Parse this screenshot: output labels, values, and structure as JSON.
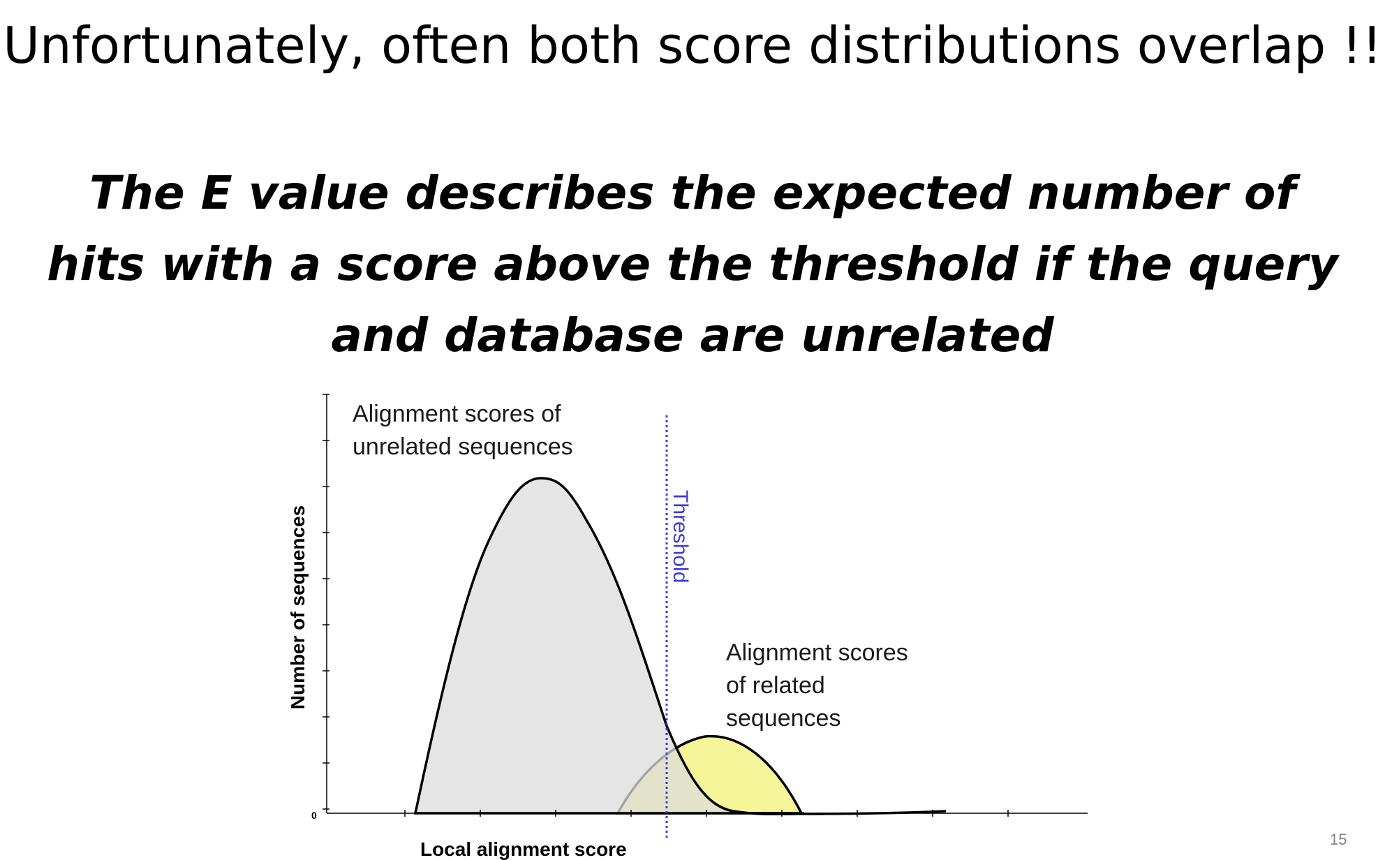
{
  "slide": {
    "title": "Unfortunately, often both score distributions overlap !!",
    "subtitle_lines": [
      "The E value describes the expected number of",
      "hits with a score above the threshold if the query",
      "and database are unrelated"
    ],
    "page_number": "15"
  },
  "diagram": {
    "y_axis_label": "Number of sequences",
    "x_axis_label": "Local alignment score",
    "y_origin_label": "0",
    "threshold_label": "Threshold",
    "unrelated_label_lines": [
      "Alignment scores of",
      "unrelated sequences"
    ],
    "related_label_lines": [
      "Alignment scores",
      "of related",
      "sequences"
    ],
    "colors": {
      "unrelated_fill": "#dcdcdc",
      "related_fill": "#f5f59a",
      "curve_stroke": "#000000",
      "threshold": "#3a3ad8",
      "axis": "#000000"
    }
  }
}
